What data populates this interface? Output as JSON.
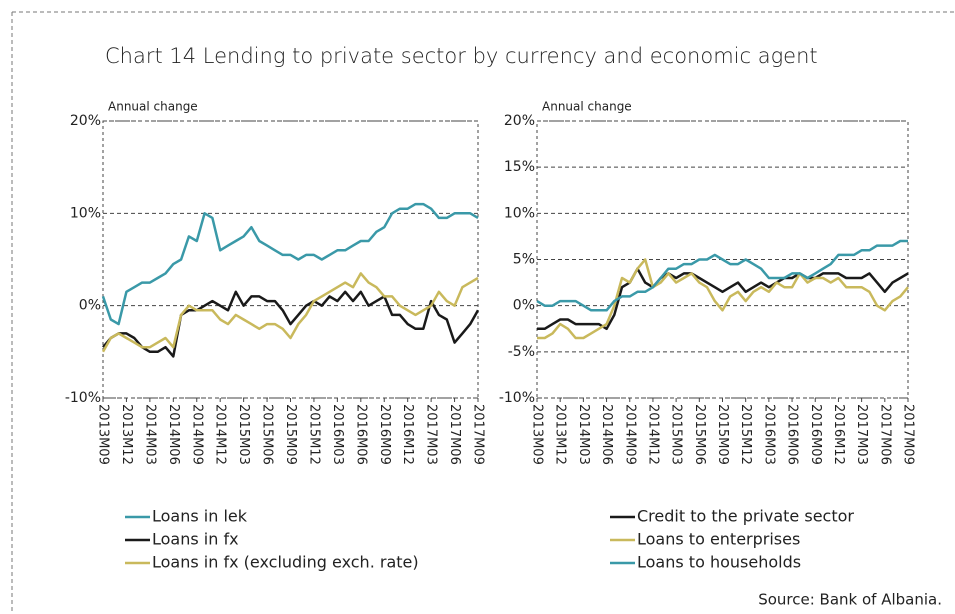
{
  "title": "Chart 14  Lending to private sector by currency and economic agent",
  "source": "Source: Bank of Albania.",
  "chart_data": [
    {
      "type": "line",
      "ylabel": "Annual change",
      "legend": "bottom-left",
      "grid": true,
      "categories": [
        "2013M09",
        null,
        null,
        "2013M12",
        null,
        null,
        "2014M03",
        null,
        null,
        "2014M06",
        null,
        null,
        "2014M09",
        null,
        null,
        "2014M12",
        null,
        null,
        "2015M03",
        null,
        null,
        "2015M06",
        null,
        null,
        "2015M09",
        null,
        null,
        "2015M12",
        null,
        null,
        "2016M03",
        null,
        null,
        "2016M06",
        null,
        null,
        "2016M09",
        null,
        null,
        "2016M12",
        null,
        null,
        "2017M03",
        null,
        null,
        "2017M06",
        null,
        null,
        "2017M09"
      ],
      "ylim": [
        -10,
        20
      ],
      "yticks": [
        {
          "value": -10,
          "label": "-10%"
        },
        {
          "value": 0,
          "label": "0%"
        },
        {
          "value": 10,
          "label": "10%"
        },
        {
          "value": 20,
          "label": "20%"
        }
      ],
      "series": [
        {
          "name": "Loans in lek",
          "color": "#3a99a8",
          "values": [
            1,
            -1.5,
            -2,
            1.5,
            2,
            2.5,
            2.5,
            3,
            3.5,
            4.5,
            5,
            7.5,
            7,
            10,
            9.5,
            6,
            6.5,
            7,
            7.5,
            8.5,
            7,
            6.5,
            6,
            5.5,
            5.5,
            5,
            5.5,
            5.5,
            5,
            5.5,
            6,
            6,
            6.5,
            7,
            7,
            8,
            8.5,
            10,
            10.5,
            10.5,
            11,
            11,
            10.5,
            9.5,
            9.5,
            10,
            10,
            10,
            9.5
          ]
        },
        {
          "name": "Loans in fx",
          "color": "#1a1a1a",
          "values": [
            -4.5,
            -3.5,
            -3,
            -3,
            -3.5,
            -4.5,
            -5,
            -5,
            -4.5,
            -5.5,
            -1,
            -0.5,
            -0.5,
            0,
            0.5,
            0,
            -0.5,
            1.5,
            0,
            1,
            1,
            0.5,
            0.5,
            -0.5,
            -2,
            -1,
            0,
            0.5,
            0,
            1,
            0.5,
            1.5,
            0.5,
            1.5,
            0,
            0.5,
            1,
            -1,
            -1,
            -2,
            -2.5,
            -2.5,
            0.5,
            -1,
            -1.5,
            -4,
            -3,
            -2,
            -0.5
          ]
        },
        {
          "name": "Loans in fx (excluding exch. rate)",
          "color": "#c9b95c",
          "values": [
            -5,
            -3.5,
            -3,
            -3.5,
            -4,
            -4.5,
            -4.5,
            -4,
            -3.5,
            -4.5,
            -1,
            0,
            -0.5,
            -0.5,
            -0.5,
            -1.5,
            -2,
            -1,
            -1.5,
            -2,
            -2.5,
            -2,
            -2,
            -2.5,
            -3.5,
            -2,
            -1,
            0.5,
            1,
            1.5,
            2,
            2.5,
            2,
            3.5,
            2.5,
            2,
            1,
            1,
            0,
            -0.5,
            -1,
            -0.5,
            0,
            1.5,
            0.5,
            0,
            2,
            2.5,
            3
          ]
        }
      ]
    },
    {
      "type": "line",
      "ylabel": "Annual change",
      "legend": "bottom-right",
      "grid": true,
      "categories": [
        "2013M09",
        null,
        null,
        "2013M12",
        null,
        null,
        "2014M03",
        null,
        null,
        "2014M06",
        null,
        null,
        "2014M09",
        null,
        null,
        "2014M12",
        null,
        null,
        "2015M03",
        null,
        null,
        "2015M06",
        null,
        null,
        "2015M09",
        null,
        null,
        "2015M12",
        null,
        null,
        "2016M03",
        null,
        null,
        "2016M06",
        null,
        null,
        "2016M09",
        null,
        null,
        "2016M12",
        null,
        null,
        "2017M03",
        null,
        null,
        "2017M06",
        null,
        null,
        "2017M09"
      ],
      "ylim": [
        -10,
        20
      ],
      "yticks": [
        {
          "value": -10,
          "label": "-10%"
        },
        {
          "value": -5,
          "label": "-5%"
        },
        {
          "value": 0,
          "label": "0%"
        },
        {
          "value": 5,
          "label": "5%"
        },
        {
          "value": 10,
          "label": "10%"
        },
        {
          "value": 15,
          "label": "15%"
        },
        {
          "value": 20,
          "label": "20%"
        }
      ],
      "series": [
        {
          "name": "Credit to the private sector",
          "color": "#1a1a1a",
          "values": [
            -2.5,
            -2.5,
            -2,
            -1.5,
            -1.5,
            -2,
            -2,
            -2,
            -2,
            -2.5,
            -1,
            2,
            2.5,
            4,
            2.5,
            2,
            3,
            3.5,
            3,
            3.5,
            3.5,
            3,
            2.5,
            2,
            1.5,
            2,
            2.5,
            1.5,
            2,
            2.5,
            2,
            2.5,
            3,
            3,
            3.5,
            3,
            3,
            3.5,
            3.5,
            3.5,
            3,
            3,
            3,
            3.5,
            2.5,
            1.5,
            2.5,
            3,
            3.5
          ]
        },
        {
          "name": "Loans to enterprises",
          "color": "#c9b95c",
          "values": [
            -3.5,
            -3.5,
            -3,
            -2,
            -2.5,
            -3.5,
            -3.5,
            -3,
            -2.5,
            -2,
            0,
            3,
            2.5,
            4,
            5,
            2,
            2.5,
            3.5,
            2.5,
            3,
            3.5,
            2.5,
            2,
            0.5,
            -0.5,
            1,
            1.5,
            0.5,
            1.5,
            2,
            1.5,
            2.5,
            2,
            2,
            3.5,
            2.5,
            3,
            3,
            2.5,
            3,
            2,
            2,
            2,
            1.5,
            0,
            -0.5,
            0.5,
            1,
            2
          ]
        },
        {
          "name": "Loans to households",
          "color": "#3a99a8",
          "values": [
            0.5,
            0,
            0,
            0.5,
            0.5,
            0.5,
            0,
            -0.5,
            -0.5,
            -0.5,
            0.5,
            1,
            1,
            1.5,
            1.5,
            2,
            3,
            4,
            4,
            4.5,
            4.5,
            5,
            5,
            5.5,
            5,
            4.5,
            4.5,
            5,
            4.5,
            4,
            3,
            3,
            3,
            3.5,
            3.5,
            3,
            3.5,
            4,
            4.5,
            5.5,
            5.5,
            5.5,
            6,
            6,
            6.5,
            6.5,
            6.5,
            7,
            7
          ]
        }
      ]
    }
  ]
}
